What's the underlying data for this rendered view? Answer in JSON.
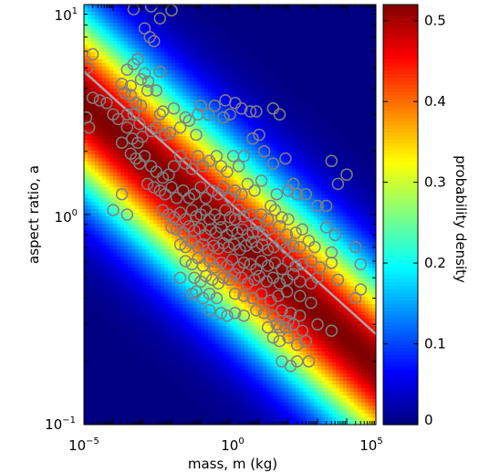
{
  "chart_data": {
    "type": "heatmap",
    "title": "",
    "xlabel": "mass, m (kg)",
    "ylabel": "aspect ratio, a",
    "xscale": "log",
    "yscale": "log",
    "xlim": [
      1e-05,
      100000
    ],
    "ylim": [
      0.1,
      10
    ],
    "x_ticks": [
      {
        "value": 1e-05,
        "base": "10",
        "exp": "−5"
      },
      {
        "value": 1,
        "base": "10",
        "exp": "0"
      },
      {
        "value": 100000,
        "base": "10",
        "exp": "5"
      }
    ],
    "y_ticks": [
      {
        "value": 0.1,
        "base": "10",
        "exp": "−1"
      },
      {
        "value": 1,
        "base": "10",
        "exp": "0"
      },
      {
        "value": 10,
        "base": "10",
        "exp": "1"
      }
    ],
    "colorbar": {
      "label": "probability density",
      "range": [
        0,
        0.52
      ],
      "ticks": [
        "0",
        "0.1",
        "0.2",
        "0.3",
        "0.4",
        "0.5"
      ],
      "tick_values": [
        0,
        0.1,
        0.2,
        0.3,
        0.4,
        0.5
      ]
    },
    "trend_line": {
      "color": "#a8a8a8",
      "points": [
        [
          1e-05,
          4.8
        ],
        [
          100000,
          0.27
        ]
      ]
    },
    "density_model": {
      "center_log10_a_at_log10_m0": -0.09,
      "slope_per_decade": -0.125,
      "sigma_log10_a": 0.3,
      "peak": 0.52
    },
    "scatter": {
      "marker": "circle",
      "color": "#808080",
      "points": [
        [
          0.0005,
          9.5
        ],
        [
          0.002,
          9.8
        ],
        [
          0.01,
          9.4
        ],
        [
          0.004,
          8.6
        ],
        [
          0.0012,
          7.7
        ],
        [
          0.0018,
          7.0
        ],
        [
          0.0025,
          6.7
        ],
        [
          2e-05,
          5.8
        ],
        [
          1.3e-05,
          5.0
        ],
        [
          0.0003,
          4.9
        ],
        [
          0.0005,
          5.2
        ],
        [
          0.0007,
          5.5
        ],
        [
          0.0009,
          4.4
        ],
        [
          0.0004,
          4.1
        ],
        [
          0.0012,
          4.7
        ],
        [
          0.0016,
          4.3
        ],
        [
          0.0002,
          4.2
        ],
        [
          0.00025,
          3.8
        ],
        [
          0.0004,
          3.7
        ],
        [
          0.0006,
          3.4
        ],
        [
          0.0009,
          3.3
        ],
        [
          0.0015,
          3.9
        ],
        [
          0.003,
          3.9
        ],
        [
          0.004,
          4.8
        ],
        [
          0.0001,
          3.0
        ],
        [
          0.00015,
          2.85
        ],
        [
          0.0003,
          3.0
        ],
        [
          0.0005,
          3.0
        ],
        [
          0.0008,
          2.7
        ],
        [
          0.0003,
          2.6
        ],
        [
          0.00045,
          2.3
        ],
        [
          0.0007,
          2.2
        ],
        [
          0.001,
          2.35
        ],
        [
          0.002,
          2.5
        ],
        [
          0.003,
          2.6
        ],
        [
          0.004,
          3.0
        ],
        [
          0.006,
          2.4
        ],
        [
          0.009,
          2.45
        ],
        [
          0.02,
          2.6
        ],
        [
          0.04,
          2.8
        ],
        [
          0.07,
          2.4
        ],
        [
          0.005,
          3.1
        ],
        [
          0.012,
          3.2
        ],
        [
          0.03,
          2.9
        ],
        [
          0.08,
          3.0
        ],
        [
          0.1,
          3.3
        ],
        [
          0.18,
          3.0
        ],
        [
          0.3,
          3.3
        ],
        [
          0.6,
          2.9
        ],
        [
          1,
          3.0
        ],
        [
          0.7,
          3.5
        ],
        [
          1.5,
          3.4
        ],
        [
          2.5,
          3.2
        ],
        [
          5,
          3.1
        ],
        [
          8,
          3.1
        ],
        [
          30,
          3.2
        ],
        [
          50,
          3.0
        ],
        [
          1.5e-05,
          2.6
        ],
        [
          1.2e-05,
          2.9
        ],
        [
          2e-05,
          3.6
        ],
        [
          3.5e-05,
          3.5
        ],
        [
          6e-05,
          3.4
        ],
        [
          0.0002,
          2.2
        ],
        [
          0.0004,
          1.95
        ],
        [
          0.0006,
          1.85
        ],
        [
          0.0008,
          1.75
        ],
        [
          0.0012,
          1.9
        ],
        [
          0.002,
          1.7
        ],
        [
          0.003,
          1.6
        ],
        [
          0.005,
          1.5
        ],
        [
          0.008,
          1.55
        ],
        [
          0.012,
          1.7
        ],
        [
          0.02,
          1.9
        ],
        [
          0.03,
          1.75
        ],
        [
          0.05,
          1.65
        ],
        [
          0.08,
          1.9
        ],
        [
          0.12,
          1.7
        ],
        [
          0.2,
          1.8
        ],
        [
          0.35,
          1.9
        ],
        [
          0.5,
          1.7
        ],
        [
          0.8,
          1.6
        ],
        [
          1.3,
          1.9
        ],
        [
          2,
          1.7
        ],
        [
          3,
          1.9
        ],
        [
          6,
          2.3
        ],
        [
          10,
          2.4
        ],
        [
          15,
          2.0
        ],
        [
          30,
          1.75
        ],
        [
          80,
          1.85
        ],
        [
          150,
          1.4
        ],
        [
          3000,
          1.8
        ],
        [
          10000,
          1.55
        ],
        [
          0.0015,
          1.4
        ],
        [
          0.0025,
          1.35
        ],
        [
          0.004,
          1.3
        ],
        [
          0.006,
          1.25
        ],
        [
          0.01,
          1.35
        ],
        [
          0.015,
          1.2
        ],
        [
          0.025,
          1.3
        ],
        [
          0.04,
          1.2
        ],
        [
          0.06,
          1.25
        ],
        [
          0.1,
          1.35
        ],
        [
          0.15,
          1.2
        ],
        [
          0.25,
          1.3
        ],
        [
          0.4,
          1.25
        ],
        [
          0.6,
          1.35
        ],
        [
          1,
          1.2
        ],
        [
          1.5,
          1.3
        ],
        [
          2.5,
          1.25
        ],
        [
          4,
          1.4
        ],
        [
          7,
          1.3
        ],
        [
          12,
          1.45
        ],
        [
          25,
          1.1
        ],
        [
          40,
          1.25
        ],
        [
          100,
          1.3
        ],
        [
          200,
          1.25
        ],
        [
          400,
          1.25
        ],
        [
          1000,
          1.1
        ],
        [
          2000,
          1.1
        ],
        [
          5000,
          1.4
        ],
        [
          0.0001,
          1.05
        ],
        [
          0.0002,
          1.25
        ],
        [
          0.0003,
          1.0
        ],
        [
          0.005,
          1.05
        ],
        [
          0.008,
          1.0
        ],
        [
          0.012,
          0.97
        ],
        [
          0.02,
          1.02
        ],
        [
          0.03,
          0.95
        ],
        [
          0.05,
          1.05
        ],
        [
          0.07,
          0.98
        ],
        [
          0.1,
          1.0
        ],
        [
          0.15,
          1.05
        ],
        [
          0.2,
          0.95
        ],
        [
          0.3,
          1.0
        ],
        [
          0.45,
          0.95
        ],
        [
          0.7,
          1.05
        ],
        [
          1,
          0.97
        ],
        [
          1.5,
          0.95
        ],
        [
          2,
          1.05
        ],
        [
          3,
          0.98
        ],
        [
          5,
          1.0
        ],
        [
          8,
          0.9
        ],
        [
          12,
          1.0
        ],
        [
          20,
          0.95
        ],
        [
          35,
          1.05
        ],
        [
          60,
          0.97
        ],
        [
          100,
          0.95
        ],
        [
          0.01,
          0.87
        ],
        [
          0.015,
          0.85
        ],
        [
          0.025,
          0.82
        ],
        [
          0.04,
          0.88
        ],
        [
          0.06,
          0.84
        ],
        [
          0.09,
          0.86
        ],
        [
          0.14,
          0.8
        ],
        [
          0.22,
          0.85
        ],
        [
          0.33,
          0.82
        ],
        [
          0.5,
          0.87
        ],
        [
          0.8,
          0.8
        ],
        [
          1.2,
          0.84
        ],
        [
          1.8,
          0.82
        ],
        [
          2.7,
          0.85
        ],
        [
          4,
          0.8
        ],
        [
          6,
          0.82
        ],
        [
          9,
          0.83
        ],
        [
          14,
          0.8
        ],
        [
          22,
          0.85
        ],
        [
          50,
          0.88
        ],
        [
          90,
          0.8
        ],
        [
          180,
          0.82
        ],
        [
          300,
          0.85
        ],
        [
          2000,
          0.87
        ],
        [
          4000,
          0.8
        ],
        [
          0.02,
          0.72
        ],
        [
          0.03,
          0.7
        ],
        [
          0.05,
          0.74
        ],
        [
          0.08,
          0.7
        ],
        [
          0.12,
          0.72
        ],
        [
          0.18,
          0.68
        ],
        [
          0.28,
          0.71
        ],
        [
          0.4,
          0.69
        ],
        [
          0.6,
          0.73
        ],
        [
          0.9,
          0.7
        ],
        [
          1.4,
          0.72
        ],
        [
          2.2,
          0.68
        ],
        [
          3.5,
          0.71
        ],
        [
          5.5,
          0.74
        ],
        [
          8.5,
          0.7
        ],
        [
          13,
          0.72
        ],
        [
          20,
          0.68
        ],
        [
          32,
          0.7
        ],
        [
          55,
          0.73
        ],
        [
          85,
          0.69
        ],
        [
          150,
          0.71
        ],
        [
          250,
          0.7
        ],
        [
          500,
          0.75
        ],
        [
          800,
          0.7
        ],
        [
          3000,
          0.66
        ],
        [
          20000,
          0.7
        ],
        [
          0.03,
          0.6
        ],
        [
          0.05,
          0.58
        ],
        [
          0.08,
          0.62
        ],
        [
          0.12,
          0.57
        ],
        [
          0.2,
          0.6
        ],
        [
          0.3,
          0.56
        ],
        [
          0.5,
          0.59
        ],
        [
          0.8,
          0.57
        ],
        [
          1.2,
          0.61
        ],
        [
          2,
          0.56
        ],
        [
          3,
          0.59
        ],
        [
          5,
          0.58
        ],
        [
          8,
          0.55
        ],
        [
          12,
          0.6
        ],
        [
          20,
          0.57
        ],
        [
          35,
          0.59
        ],
        [
          60,
          0.55
        ],
        [
          100,
          0.6
        ],
        [
          180,
          0.57
        ],
        [
          300,
          0.58
        ],
        [
          600,
          0.6
        ],
        [
          1200,
          0.56
        ],
        [
          3000,
          0.59
        ],
        [
          30000,
          0.58
        ],
        [
          0.06,
          0.5
        ],
        [
          0.1,
          0.48
        ],
        [
          0.15,
          0.51
        ],
        [
          0.25,
          0.49
        ],
        [
          0.4,
          0.47
        ],
        [
          0.6,
          0.5
        ],
        [
          1,
          0.49
        ],
        [
          1.5,
          0.52
        ],
        [
          2.5,
          0.5
        ],
        [
          4,
          0.47
        ],
        [
          7,
          0.49
        ],
        [
          10,
          0.51
        ],
        [
          18,
          0.48
        ],
        [
          30,
          0.5
        ],
        [
          50,
          0.47
        ],
        [
          90,
          0.49
        ],
        [
          150,
          0.52
        ],
        [
          250,
          0.48
        ],
        [
          600,
          0.47
        ],
        [
          1000,
          0.5
        ],
        [
          5000,
          0.49
        ],
        [
          0.02,
          0.5
        ],
        [
          0.05,
          0.42
        ],
        [
          0.07,
          0.43
        ],
        [
          0.12,
          0.4
        ],
        [
          0.2,
          0.42
        ],
        [
          0.35,
          0.4
        ],
        [
          1.5,
          0.42
        ],
        [
          3,
          0.41
        ],
        [
          6,
          0.4
        ],
        [
          12,
          0.42
        ],
        [
          25,
          0.39
        ],
        [
          45,
          0.41
        ],
        [
          90,
          0.43
        ],
        [
          250,
          0.41
        ],
        [
          600,
          0.38
        ],
        [
          20000,
          0.4
        ],
        [
          30000,
          0.44
        ],
        [
          0.2,
          0.35
        ],
        [
          0.5,
          0.34
        ],
        [
          0.8,
          0.33
        ],
        [
          1.5,
          0.34
        ],
        [
          3,
          0.33
        ],
        [
          8,
          0.35
        ],
        [
          15,
          0.34
        ],
        [
          30,
          0.33
        ],
        [
          60,
          0.35
        ],
        [
          120,
          0.34
        ],
        [
          250,
          0.33
        ],
        [
          20,
          0.29
        ],
        [
          40,
          0.3
        ],
        [
          80,
          0.29
        ],
        [
          150,
          0.3
        ],
        [
          300,
          0.28
        ],
        [
          50,
          0.25
        ],
        [
          100,
          0.26
        ],
        [
          200,
          0.24
        ],
        [
          400,
          0.25
        ],
        [
          60,
          0.2
        ],
        [
          120,
          0.19
        ],
        [
          200,
          0.2
        ],
        [
          500,
          0.2
        ],
        [
          50,
          0.29
        ],
        [
          100,
          0.31
        ],
        [
          1000,
          0.3
        ],
        [
          3000,
          0.28
        ],
        [
          30,
          0.26
        ]
      ]
    }
  }
}
